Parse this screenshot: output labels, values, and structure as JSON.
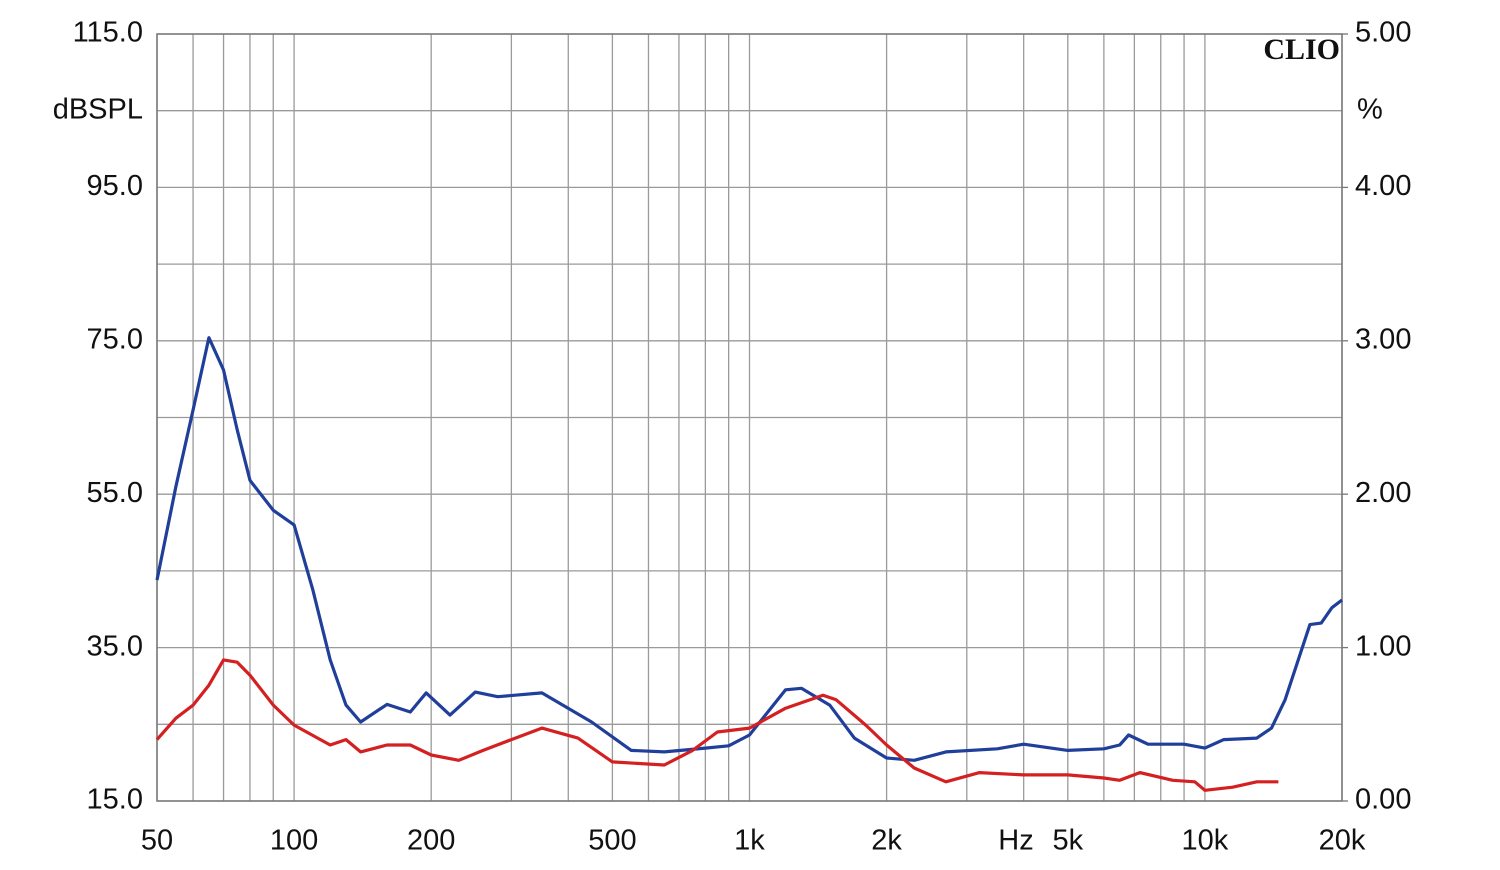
{
  "chart_data": {
    "type": "line",
    "ylabel": "dBSPL",
    "y2label": "%",
    "xlabel": "Hz",
    "watermark": "CLIO",
    "xscale": "log",
    "grid": true,
    "xlim": [
      50,
      20000
    ],
    "xticks": [
      50,
      100,
      200,
      500,
      {
        "value": 1000,
        "label": "1k"
      },
      {
        "value": 2000,
        "label": "2k"
      },
      {
        "value": 5000,
        "label": "5k"
      },
      {
        "value": 10000,
        "label": "10k"
      },
      {
        "value": 20000,
        "label": "20k"
      }
    ],
    "xgrid": [
      60,
      70,
      80,
      90,
      300,
      400,
      600,
      700,
      800,
      900,
      3000,
      4000,
      6000,
      7000,
      8000,
      9000
    ],
    "ylim": [
      15,
      115
    ],
    "yticks": [
      {
        "value": 115,
        "label": "115.0"
      },
      {
        "value": 95,
        "label": "95.0"
      },
      {
        "value": 75,
        "label": "75.0"
      },
      {
        "value": 55,
        "label": "55.0"
      },
      {
        "value": 35,
        "label": "35.0"
      },
      {
        "value": 15,
        "label": "15.0"
      }
    ],
    "ygrid": [
      105,
      85,
      65,
      45,
      25
    ],
    "y2lim": [
      0,
      5
    ],
    "y2ticks": [
      {
        "value": 5,
        "label": "5.00"
      },
      {
        "value": 4,
        "label": "4.00"
      },
      {
        "value": 3,
        "label": "3.00"
      },
      {
        "value": 2,
        "label": "2.00"
      },
      {
        "value": 1,
        "label": "1.00"
      },
      {
        "value": 0,
        "label": "0.00"
      }
    ],
    "series": [
      {
        "color": "#1f3f9a",
        "x": [
          50,
          55,
          60,
          65,
          70,
          75,
          80,
          90,
          100,
          110,
          120,
          130,
          140,
          160,
          180,
          195,
          220,
          250,
          280,
          350,
          450,
          550,
          650,
          800,
          900,
          1000,
          1200,
          1300,
          1500,
          1700,
          2000,
          2300,
          2700,
          3500,
          4000,
          5000,
          6000,
          6500,
          6800,
          7500,
          9000,
          10000,
          11000,
          13000,
          14000,
          15000,
          17000,
          18000,
          19000,
          20000
        ],
        "values": [
          43.8,
          56,
          66,
          75.4,
          71.2,
          63.4,
          56.8,
          52.9,
          51,
          42.5,
          33.4,
          27.5,
          25.3,
          27.6,
          26.6,
          29.1,
          26.2,
          29.2,
          28.6,
          29.1,
          25.3,
          21.6,
          21.4,
          21.9,
          22.2,
          23.6,
          29.5,
          29.7,
          27.5,
          23.2,
          20.6,
          20.3,
          21.4,
          21.8,
          22.4,
          21.6,
          21.8,
          22.3,
          23.6,
          22.4,
          22.4,
          21.9,
          23,
          23.2,
          24.5,
          28.2,
          38,
          38.2,
          40.2,
          41.2
        ]
      },
      {
        "color": "#d42020",
        "x": [
          50,
          55,
          60,
          65,
          70,
          75,
          80,
          90,
          100,
          120,
          130,
          140,
          160,
          180,
          200,
          230,
          260,
          300,
          350,
          420,
          500,
          650,
          750,
          850,
          1000,
          1200,
          1450,
          1550,
          1800,
          2000,
          2300,
          2700,
          3200,
          4000,
          5000,
          6000,
          6500,
          7200,
          8500,
          9500,
          10000,
          11500,
          13000,
          14500
        ],
        "values": [
          23,
          25.8,
          27.5,
          30.1,
          33.4,
          33.1,
          31.4,
          27.5,
          24.9,
          22.3,
          23,
          21.4,
          22.3,
          22.3,
          21,
          20.3,
          21.6,
          23,
          24.5,
          23.2,
          20.1,
          19.7,
          21.6,
          24,
          24.5,
          27.1,
          28.8,
          28.2,
          24.9,
          22.3,
          19.3,
          17.5,
          18.7,
          18.4,
          18.4,
          18,
          17.7,
          18.7,
          17.7,
          17.5,
          16.4,
          16.8,
          17.5,
          17.5
        ]
      }
    ]
  }
}
